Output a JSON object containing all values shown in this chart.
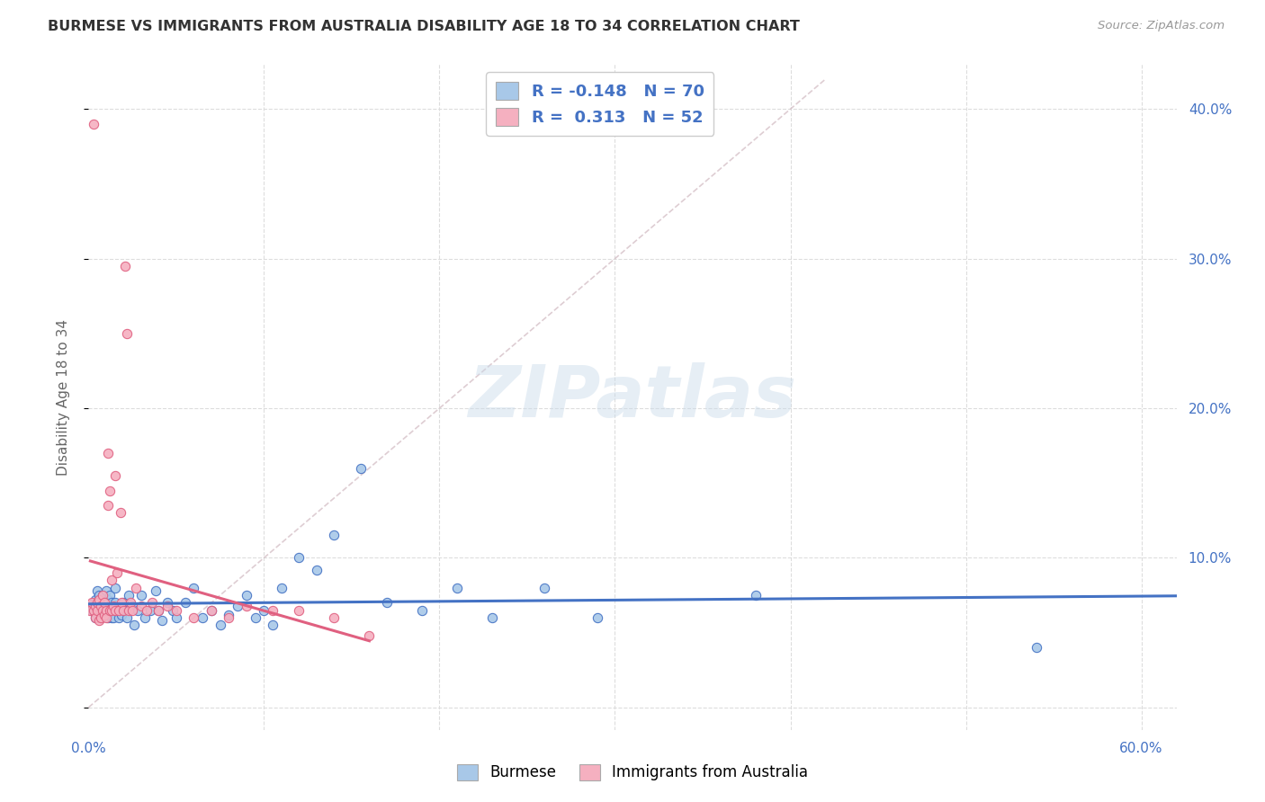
{
  "title": "BURMESE VS IMMIGRANTS FROM AUSTRALIA DISABILITY AGE 18 TO 34 CORRELATION CHART",
  "source": "Source: ZipAtlas.com",
  "ylabel": "Disability Age 18 to 34",
  "xlim": [
    0.0,
    0.62
  ],
  "ylim": [
    -0.015,
    0.43
  ],
  "xticks": [
    0.0,
    0.1,
    0.2,
    0.3,
    0.4,
    0.5,
    0.6
  ],
  "xticklabels": [
    "0.0%",
    "",
    "",
    "",
    "",
    "",
    "60.0%"
  ],
  "yticks_right": [
    0.1,
    0.2,
    0.3,
    0.4
  ],
  "yticklabels_right": [
    "10.0%",
    "20.0%",
    "30.0%",
    "40.0%"
  ],
  "legend_label1": "Burmese",
  "legend_label2": "Immigrants from Australia",
  "r1": "-0.148",
  "n1": "70",
  "r2": "0.313",
  "n2": "52",
  "color_blue": "#a8c8e8",
  "color_pink": "#f5b0c0",
  "trendline_blue": "#4472c4",
  "trendline_pink": "#e06080",
  "trendline_dashed_color": "#d0b8c0",
  "watermark_color": "#c8daea",
  "blue_scatter_x": [
    0.002,
    0.003,
    0.004,
    0.004,
    0.005,
    0.005,
    0.006,
    0.006,
    0.007,
    0.007,
    0.008,
    0.008,
    0.009,
    0.009,
    0.01,
    0.01,
    0.011,
    0.011,
    0.012,
    0.012,
    0.013,
    0.013,
    0.014,
    0.014,
    0.015,
    0.015,
    0.016,
    0.017,
    0.018,
    0.019,
    0.02,
    0.021,
    0.022,
    0.023,
    0.025,
    0.026,
    0.028,
    0.03,
    0.032,
    0.035,
    0.038,
    0.04,
    0.042,
    0.045,
    0.048,
    0.05,
    0.055,
    0.06,
    0.065,
    0.07,
    0.075,
    0.08,
    0.085,
    0.09,
    0.095,
    0.1,
    0.105,
    0.11,
    0.12,
    0.13,
    0.14,
    0.155,
    0.17,
    0.19,
    0.21,
    0.23,
    0.26,
    0.29,
    0.38,
    0.54
  ],
  "blue_scatter_y": [
    0.065,
    0.07,
    0.072,
    0.06,
    0.068,
    0.078,
    0.065,
    0.075,
    0.06,
    0.07,
    0.065,
    0.075,
    0.062,
    0.07,
    0.068,
    0.078,
    0.06,
    0.072,
    0.065,
    0.075,
    0.06,
    0.07,
    0.065,
    0.06,
    0.07,
    0.08,
    0.065,
    0.06,
    0.068,
    0.062,
    0.07,
    0.065,
    0.06,
    0.075,
    0.068,
    0.055,
    0.065,
    0.075,
    0.06,
    0.065,
    0.078,
    0.065,
    0.058,
    0.07,
    0.065,
    0.06,
    0.07,
    0.08,
    0.06,
    0.065,
    0.055,
    0.062,
    0.068,
    0.075,
    0.06,
    0.065,
    0.055,
    0.08,
    0.1,
    0.092,
    0.115,
    0.16,
    0.07,
    0.065,
    0.08,
    0.06,
    0.08,
    0.06,
    0.075,
    0.04
  ],
  "pink_scatter_x": [
    0.001,
    0.002,
    0.003,
    0.003,
    0.004,
    0.004,
    0.005,
    0.005,
    0.006,
    0.006,
    0.007,
    0.007,
    0.008,
    0.008,
    0.009,
    0.009,
    0.01,
    0.01,
    0.011,
    0.011,
    0.012,
    0.012,
    0.013,
    0.013,
    0.014,
    0.015,
    0.015,
    0.016,
    0.017,
    0.018,
    0.019,
    0.02,
    0.021,
    0.022,
    0.023,
    0.024,
    0.025,
    0.027,
    0.03,
    0.033,
    0.036,
    0.04,
    0.045,
    0.05,
    0.06,
    0.07,
    0.08,
    0.09,
    0.105,
    0.12,
    0.14,
    0.16
  ],
  "pink_scatter_y": [
    0.065,
    0.07,
    0.39,
    0.065,
    0.068,
    0.06,
    0.065,
    0.07,
    0.058,
    0.072,
    0.06,
    0.068,
    0.065,
    0.075,
    0.062,
    0.07,
    0.065,
    0.06,
    0.17,
    0.135,
    0.065,
    0.145,
    0.065,
    0.085,
    0.068,
    0.065,
    0.155,
    0.09,
    0.065,
    0.13,
    0.07,
    0.065,
    0.295,
    0.25,
    0.065,
    0.07,
    0.065,
    0.08,
    0.068,
    0.065,
    0.07,
    0.065,
    0.068,
    0.065,
    0.06,
    0.065,
    0.06,
    0.068,
    0.065,
    0.065,
    0.06,
    0.048
  ]
}
